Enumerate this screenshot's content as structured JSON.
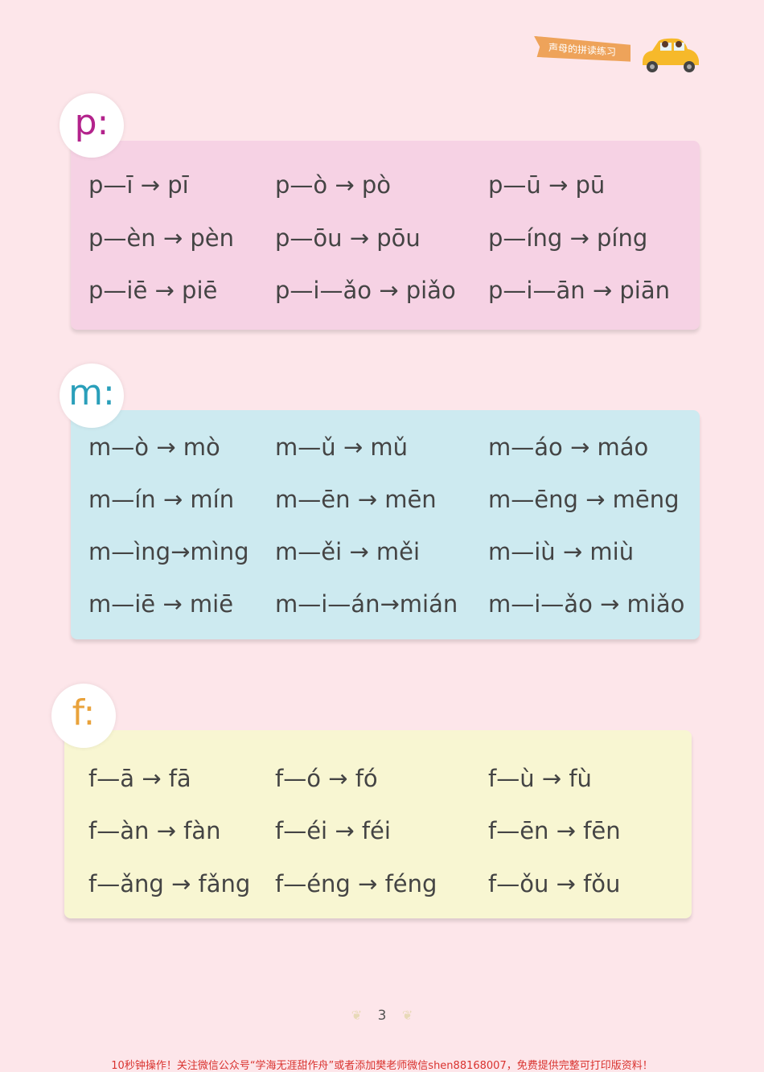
{
  "header": {
    "banner_text": "声母的拼读练习",
    "car_icon": "car-icon"
  },
  "sections": [
    {
      "letter": "p:",
      "color": "#b3238c",
      "bg": "#f6d2e4",
      "rows": [
        [
          "p—ī → pī",
          "p—ò → pò",
          "p—ū → pū"
        ],
        [
          "p—èn → pèn",
          "p—ōu → pōu",
          "p—íng → píng"
        ],
        [
          "p—iē → piē",
          "p—i—ǎo → piǎo",
          "p—i—ān → piān"
        ]
      ]
    },
    {
      "letter": "m:",
      "color": "#2a9fba",
      "bg": "#cdeaf0",
      "rows": [
        [
          "m—ò → mò",
          "m—ǔ → mǔ",
          "m—áo → máo"
        ],
        [
          "m—ín → mín",
          "m—ēn → mēn",
          "m—ēng → mēng"
        ],
        [
          "m—ìng→mìng",
          "m—ěi → měi",
          "m—iù → miù"
        ],
        [
          "m—iē → miē",
          "m—i—án→mián",
          "m—i—ǎo → miǎo"
        ]
      ]
    },
    {
      "letter": "f:",
      "color": "#e9a23b",
      "bg": "#f8f6d2",
      "rows": [
        [
          "f—ā → fā",
          "f—ó → fó",
          "f—ù → fù"
        ],
        [
          "f—àn → fàn",
          "f—éi → féi",
          "f—ēn → fēn"
        ],
        [
          "f—ǎng → fǎng",
          "f—éng → féng",
          "f—ǒu → fǒu"
        ]
      ]
    }
  ],
  "page_number": "3",
  "footer": "10秒钟操作！关注微信公众号“学海无涯甜作舟”或者添加樊老师微信shen88168007，免费提供完整可打印版资料！"
}
